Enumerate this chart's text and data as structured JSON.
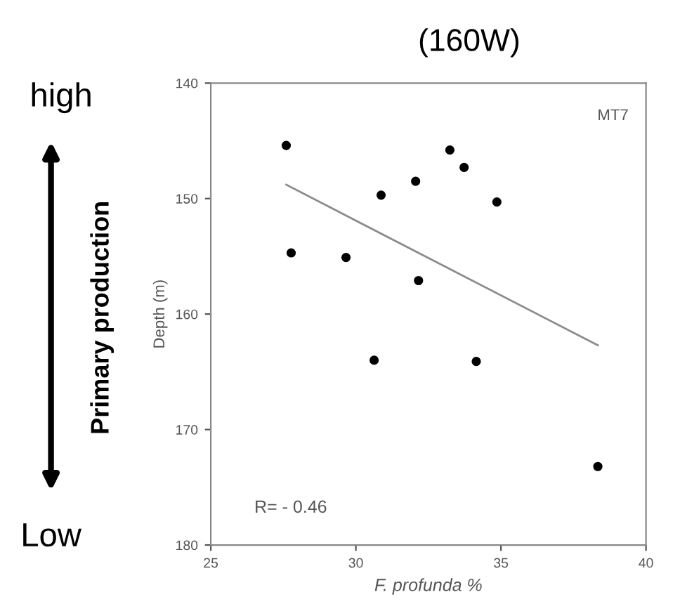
{
  "chart_data": {
    "type": "scatter",
    "title": "(160W)",
    "xlabel": "F. profunda %",
    "ylabel": "Depth (m)",
    "xlim": [
      25,
      40
    ],
    "xticks": [
      25,
      30,
      35,
      40
    ],
    "ylim": [
      180,
      140
    ],
    "yticks": [
      140,
      150,
      160,
      170,
      180
    ],
    "grid": false,
    "legend": false,
    "marker": "circle",
    "series": [
      {
        "color": "#000000",
        "x": [
          27.6,
          27.77,
          29.66,
          30.63,
          30.87,
          32.06,
          32.16,
          33.24,
          33.73,
          34.15,
          34.86,
          38.34
        ],
        "values": [
          145.4,
          154.7,
          155.1,
          164.0,
          149.7,
          148.5,
          157.1,
          145.8,
          147.3,
          164.1,
          150.3,
          173.2
        ]
      },
      {
        "type": "line",
        "marker": "none",
        "color": "#8c8c8c",
        "x": [
          27.6,
          38.34
        ],
        "values": [
          148.8,
          162.7
        ]
      }
    ],
    "annotations": [
      "MT7",
      "R= - 0.46",
      "high",
      "Low",
      "Primary production"
    ]
  }
}
